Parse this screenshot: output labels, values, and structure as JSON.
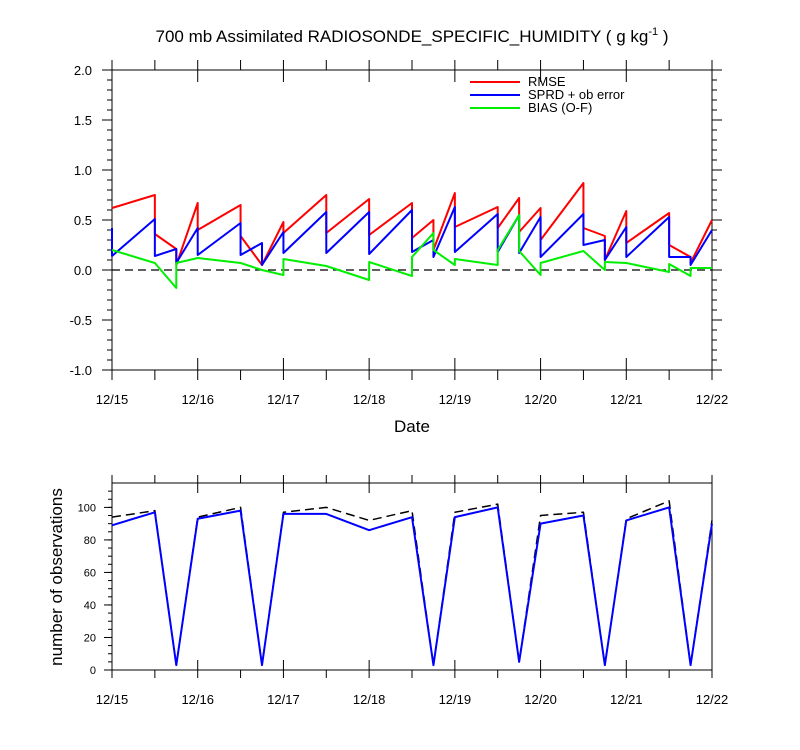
{
  "chart_data": [
    {
      "type": "line",
      "title_main": "700 mb Assimilated RADIOSONDE_SPECIFIC_HUMIDITY ( g kg",
      "title_sup": "-1",
      "title_end": " )",
      "xlabel": "Date",
      "ylabel": "",
      "xlim": [
        0,
        7
      ],
      "ylim": [
        -1.0,
        2.0
      ],
      "x_ticks": [
        {
          "x": 0,
          "label": "12/15"
        },
        {
          "x": 1,
          "label": "12/16"
        },
        {
          "x": 2,
          "label": "12/17"
        },
        {
          "x": 3,
          "label": "12/18"
        },
        {
          "x": 4,
          "label": "12/19"
        },
        {
          "x": 5,
          "label": "12/20"
        },
        {
          "x": 6,
          "label": "12/21"
        },
        {
          "x": 7,
          "label": "12/22"
        }
      ],
      "y_ticks": [
        {
          "y": 2.0,
          "label": "2.0"
        },
        {
          "y": 1.5,
          "label": "1.5"
        },
        {
          "y": 1.0,
          "label": "1.0"
        },
        {
          "y": 0.5,
          "label": "0.5"
        },
        {
          "y": 0.0,
          "label": "0.0"
        },
        {
          "y": -0.5,
          "label": "-0.5"
        },
        {
          "y": -1.0,
          "label": "-1.0"
        }
      ],
      "zero_line": 0.0,
      "legend_position": "top-right",
      "series": [
        {
          "name": "RMSE",
          "color": "#ff0000",
          "points": [
            [
              0,
              0.62
            ],
            [
              0.5,
              0.75
            ],
            [
              0.5,
              0.36
            ],
            [
              0.75,
              0.21
            ],
            [
              0.75,
              0.05
            ],
            [
              1,
              0.67
            ],
            [
              1,
              0.4
            ],
            [
              1.5,
              0.65
            ],
            [
              1.5,
              0.34
            ],
            [
              1.75,
              0.05
            ],
            [
              2,
              0.48
            ],
            [
              2,
              0.37
            ],
            [
              2.5,
              0.75
            ],
            [
              2.5,
              0.37
            ],
            [
              3,
              0.71
            ],
            [
              3,
              0.35
            ],
            [
              3.5,
              0.67
            ],
            [
              3.5,
              0.32
            ],
            [
              3.75,
              0.5
            ],
            [
              3.75,
              0.2
            ],
            [
              4,
              0.77
            ],
            [
              4,
              0.43
            ],
            [
              4.5,
              0.63
            ],
            [
              4.5,
              0.42
            ],
            [
              4.75,
              0.72
            ],
            [
              4.75,
              0.38
            ],
            [
              5,
              0.62
            ],
            [
              5,
              0.3
            ],
            [
              5.5,
              0.87
            ],
            [
              5.5,
              0.42
            ],
            [
              5.75,
              0.34
            ],
            [
              5.75,
              0.1
            ],
            [
              6,
              0.59
            ],
            [
              6,
              0.27
            ],
            [
              6.5,
              0.57
            ],
            [
              6.5,
              0.25
            ],
            [
              6.75,
              0.13
            ],
            [
              6.75,
              0.07
            ],
            [
              7,
              0.5
            ]
          ]
        },
        {
          "name": "SPRD + ob error",
          "color": "#0000ff",
          "points": [
            [
              0,
              0.42
            ],
            [
              0,
              0.14
            ],
            [
              0.5,
              0.51
            ],
            [
              0.5,
              0.14
            ],
            [
              0.75,
              0.21
            ],
            [
              0.75,
              0.07
            ],
            [
              1,
              0.42
            ],
            [
              1,
              0.15
            ],
            [
              1.5,
              0.47
            ],
            [
              1.5,
              0.15
            ],
            [
              1.75,
              0.27
            ],
            [
              1.75,
              0.05
            ],
            [
              2,
              0.38
            ],
            [
              2,
              0.17
            ],
            [
              2.5,
              0.58
            ],
            [
              2.5,
              0.17
            ],
            [
              3,
              0.58
            ],
            [
              3,
              0.16
            ],
            [
              3.5,
              0.6
            ],
            [
              3.5,
              0.18
            ],
            [
              3.75,
              0.3
            ],
            [
              3.75,
              0.13
            ],
            [
              4,
              0.63
            ],
            [
              4,
              0.18
            ],
            [
              4.5,
              0.56
            ],
            [
              4.5,
              0.18
            ],
            [
              4.75,
              0.55
            ],
            [
              4.75,
              0.17
            ],
            [
              5,
              0.53
            ],
            [
              5,
              0.13
            ],
            [
              5.5,
              0.56
            ],
            [
              5.5,
              0.25
            ],
            [
              5.75,
              0.3
            ],
            [
              5.75,
              0.1
            ],
            [
              6,
              0.43
            ],
            [
              6,
              0.13
            ],
            [
              6.5,
              0.53
            ],
            [
              6.5,
              0.13
            ],
            [
              6.75,
              0.13
            ],
            [
              6.75,
              0.05
            ],
            [
              7,
              0.4
            ]
          ]
        },
        {
          "name": "BIAS (O-F)",
          "color": "#00ee00",
          "points": [
            [
              0,
              0.2
            ],
            [
              0.5,
              0.07
            ],
            [
              0.75,
              -0.18
            ],
            [
              0.75,
              0.07
            ],
            [
              1,
              0.12
            ],
            [
              1.5,
              0.07
            ],
            [
              1.75,
              0.0
            ],
            [
              2,
              -0.05
            ],
            [
              2,
              0.11
            ],
            [
              2.5,
              0.04
            ],
            [
              3,
              -0.1
            ],
            [
              3,
              0.08
            ],
            [
              3.5,
              -0.06
            ],
            [
              3.5,
              0.13
            ],
            [
              3.75,
              0.37
            ],
            [
              3.75,
              0.2
            ],
            [
              4,
              0.05
            ],
            [
              4,
              0.11
            ],
            [
              4.5,
              0.05
            ],
            [
              4.5,
              0.2
            ],
            [
              4.75,
              0.55
            ],
            [
              4.75,
              0.19
            ],
            [
              5,
              -0.05
            ],
            [
              5,
              0.07
            ],
            [
              5.5,
              0.19
            ],
            [
              5.75,
              0.0
            ],
            [
              5.75,
              0.08
            ],
            [
              6,
              0.07
            ],
            [
              6.5,
              -0.02
            ],
            [
              6.5,
              0.06
            ],
            [
              6.75,
              -0.06
            ],
            [
              6.75,
              0.02
            ],
            [
              7,
              0.02
            ]
          ]
        }
      ]
    },
    {
      "type": "line",
      "xlabel": "",
      "ylabel": "number of observations",
      "xlim": [
        0,
        7
      ],
      "ylim": [
        0,
        115
      ],
      "x_ticks": [
        {
          "x": 0,
          "label": "12/15"
        },
        {
          "x": 1,
          "label": "12/16"
        },
        {
          "x": 2,
          "label": "12/17"
        },
        {
          "x": 3,
          "label": "12/18"
        },
        {
          "x": 4,
          "label": "12/19"
        },
        {
          "x": 5,
          "label": "12/20"
        },
        {
          "x": 6,
          "label": "12/21"
        },
        {
          "x": 7,
          "label": "12/22"
        }
      ],
      "y_ticks": [
        {
          "y": 100,
          "label": "100"
        },
        {
          "y": 80,
          "label": "80"
        },
        {
          "y": 60,
          "label": "60"
        },
        {
          "y": 40,
          "label": "40"
        },
        {
          "y": 20,
          "label": "20"
        },
        {
          "y": 0,
          "label": "0"
        }
      ],
      "series": [
        {
          "style": "dashed",
          "color": "#000000",
          "points": [
            [
              0,
              94
            ],
            [
              0.5,
              98
            ],
            [
              0.75,
              3
            ],
            [
              1,
              94
            ],
            [
              1.5,
              100
            ],
            [
              1.75,
              3
            ],
            [
              2,
              97
            ],
            [
              2.5,
              100
            ],
            [
              3,
              92
            ],
            [
              3.5,
              98
            ],
            [
              3.75,
              3
            ],
            [
              4,
              97
            ],
            [
              4.5,
              102
            ],
            [
              4.75,
              5
            ],
            [
              5,
              95
            ],
            [
              5.5,
              97
            ],
            [
              5.75,
              3
            ],
            [
              6,
              93
            ],
            [
              6.5,
              104
            ],
            [
              6.75,
              3
            ],
            [
              7,
              92
            ]
          ]
        },
        {
          "style": "solid",
          "color": "#0000ff",
          "points": [
            [
              0,
              89
            ],
            [
              0.5,
              97
            ],
            [
              0.75,
              3
            ],
            [
              1,
              93
            ],
            [
              1.5,
              98
            ],
            [
              1.75,
              3
            ],
            [
              2,
              96
            ],
            [
              2.5,
              96
            ],
            [
              3,
              86
            ],
            [
              3.5,
              94
            ],
            [
              3.75,
              3
            ],
            [
              4,
              94
            ],
            [
              4.5,
              100
            ],
            [
              4.75,
              5
            ],
            [
              5,
              90
            ],
            [
              5.5,
              95
            ],
            [
              5.75,
              3
            ],
            [
              6,
              92
            ],
            [
              6.5,
              100
            ],
            [
              6.75,
              3
            ],
            [
              7,
              90
            ]
          ]
        }
      ]
    }
  ]
}
